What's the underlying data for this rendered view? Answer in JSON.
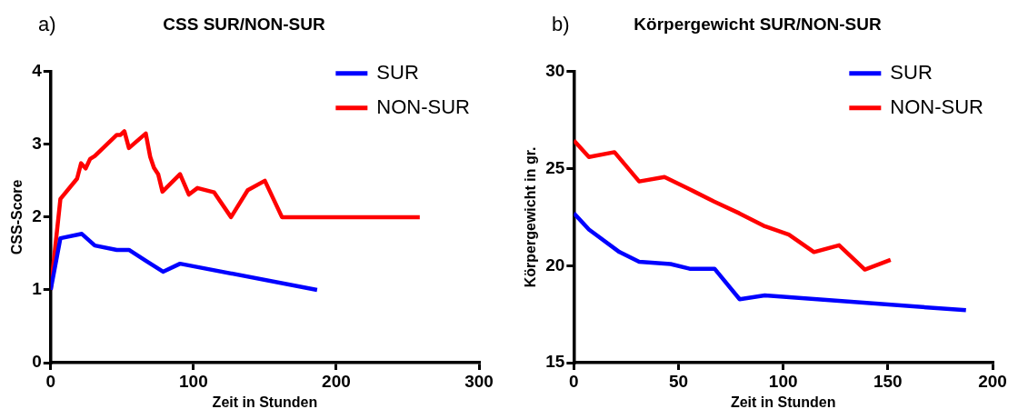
{
  "chart_data": [
    {
      "type": "line",
      "title": "CSS SUR/NON-SUR",
      "xlabel": "Zeit in Stunden",
      "ylabel": "CSS-Score",
      "annotations": [
        "a)"
      ],
      "xlim": [
        0,
        300
      ],
      "xticks": [
        0,
        100,
        200,
        300
      ],
      "ylim": [
        0,
        4
      ],
      "yticks": [
        0,
        1,
        2,
        3,
        4
      ],
      "grid": false,
      "legend": "top right",
      "marker": "none",
      "series": [
        {
          "name": "SUR",
          "color": "#0000ff",
          "x": [
            0,
            6.8,
            21.8,
            30.9,
            46.3,
            54.8,
            66.6,
            78.7,
            90.6,
            186.6
          ],
          "values": [
            1,
            1.71,
            1.77,
            1.61,
            1.55,
            1.55,
            1.4,
            1.25,
            1.36,
            1
          ]
        },
        {
          "name": "NON-SUR",
          "color": "#ff0000",
          "x": [
            0,
            6.8,
            18.5,
            21.3,
            24.5,
            27.6,
            30.9,
            46.3,
            48.9,
            51.6,
            54.8,
            66.6,
            69.7,
            72.3,
            75.3,
            78.3,
            90.6,
            96.8,
            102.8,
            114.5,
            126.3,
            138,
            150,
            162,
            258.5
          ],
          "values": [
            1,
            2.25,
            2.53,
            2.74,
            2.67,
            2.8,
            2.84,
            3.13,
            3.13,
            3.18,
            2.95,
            3.15,
            2.83,
            2.68,
            2.59,
            2.35,
            2.59,
            2.31,
            2.4,
            2.34,
            2,
            2.37,
            2.5,
            2,
            2
          ]
        }
      ]
    },
    {
      "type": "line",
      "title": "Körpergewicht SUR/NON-SUR",
      "xlabel": "Zeit in Stunden",
      "ylabel": "Körpergewicht in gr.",
      "annotations": [
        "b)"
      ],
      "xlim": [
        0,
        200
      ],
      "xticks": [
        0,
        50,
        100,
        150,
        200
      ],
      "ylim": [
        15,
        30
      ],
      "yticks": [
        15,
        20,
        25,
        30
      ],
      "grid": false,
      "legend": "top right",
      "marker": "none",
      "series": [
        {
          "name": "SUR",
          "color": "#0000ff",
          "x": [
            0,
            7.2,
            21.8,
            31.2,
            46.2,
            55.3,
            67.2,
            79.2,
            91.2,
            187.3
          ],
          "values": [
            22.7,
            21.86,
            20.7,
            20.2,
            20.08,
            19.84,
            19.84,
            18.27,
            18.47,
            17.7
          ]
        },
        {
          "name": "NON-SUR",
          "color": "#ff0000",
          "x": [
            0,
            7.2,
            19.4,
            31.2,
            43.3,
            54.9,
            67,
            79,
            90.6,
            102.7,
            114.7,
            126.7,
            139,
            151.3
          ],
          "values": [
            26.45,
            25.6,
            25.85,
            24.34,
            24.57,
            23.96,
            23.3,
            22.7,
            22.06,
            21.6,
            20.7,
            21.05,
            19.8,
            20.3
          ]
        }
      ]
    }
  ]
}
